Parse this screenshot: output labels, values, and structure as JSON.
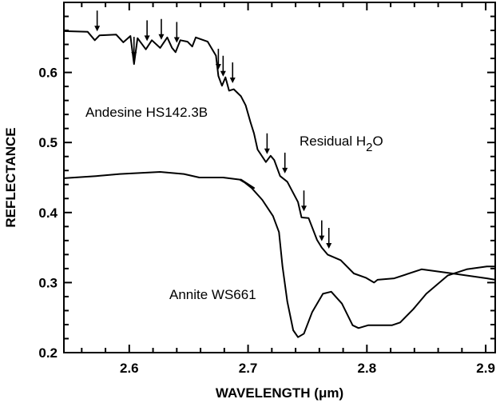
{
  "chart_data": {
    "type": "line",
    "title": "",
    "xlabel": "WAVELENGTH (μm)",
    "ylabel": "REFLECTANCE",
    "xlim": [
      2.545,
      2.908
    ],
    "ylim": [
      0.2,
      0.7
    ],
    "xticks": [
      2.6,
      2.7,
      2.8,
      2.9
    ],
    "xtick_labels": [
      "2.6",
      "2.7",
      "2.8",
      "2.9"
    ],
    "yticks": [
      0.2,
      0.3,
      0.4,
      0.5,
      0.6
    ],
    "ytick_labels": [
      "0.2",
      "0.3",
      "0.4",
      "0.5",
      "0.6"
    ],
    "minor_tick_step": 0.02,
    "grid": false,
    "series": [
      {
        "name": "Andesine HS142.3B",
        "x": [
          2.545,
          2.565,
          2.571,
          2.575,
          2.589,
          2.595,
          2.601,
          2.604,
          2.607,
          2.614,
          2.619,
          2.626,
          2.632,
          2.636,
          2.639,
          2.643,
          2.649,
          2.653,
          2.656,
          2.666,
          2.673,
          2.675,
          2.678,
          2.681,
          2.684,
          2.688,
          2.694,
          2.698,
          2.702,
          2.705,
          2.708,
          2.715,
          2.719,
          2.722,
          2.727,
          2.733,
          2.742,
          2.745,
          2.751,
          2.758,
          2.762,
          2.767,
          2.778,
          2.789,
          2.799,
          2.806,
          2.809,
          2.823,
          2.846,
          2.872,
          2.901,
          2.908
        ],
        "y": [
          0.659,
          0.658,
          0.646,
          0.653,
          0.654,
          0.643,
          0.652,
          0.612,
          0.649,
          0.633,
          0.646,
          0.635,
          0.65,
          0.635,
          0.629,
          0.646,
          0.644,
          0.637,
          0.65,
          0.644,
          0.624,
          0.595,
          0.581,
          0.593,
          0.574,
          0.576,
          0.566,
          0.553,
          0.529,
          0.513,
          0.49,
          0.472,
          0.481,
          0.475,
          0.452,
          0.444,
          0.415,
          0.393,
          0.392,
          0.361,
          0.35,
          0.34,
          0.332,
          0.313,
          0.307,
          0.3,
          0.304,
          0.306,
          0.319,
          0.313,
          0.306,
          0.304
        ]
      },
      {
        "name": "Annite WS661",
        "x": [
          2.545,
          2.572,
          2.592,
          2.626,
          2.646,
          2.659,
          2.679,
          2.693,
          2.705,
          2.694,
          2.703,
          2.712,
          2.721,
          2.726,
          2.729,
          2.733,
          2.738,
          2.742,
          2.747,
          2.754,
          2.763,
          2.77,
          2.779,
          2.788,
          2.793,
          2.801,
          2.821,
          2.828,
          2.839,
          2.85,
          2.868,
          2.884,
          2.901,
          2.908
        ],
        "y": [
          0.449,
          0.452,
          0.455,
          0.458,
          0.455,
          0.45,
          0.45,
          0.447,
          0.435,
          0.447,
          0.435,
          0.418,
          0.395,
          0.372,
          0.323,
          0.273,
          0.232,
          0.222,
          0.227,
          0.258,
          0.284,
          0.287,
          0.27,
          0.239,
          0.235,
          0.239,
          0.239,
          0.243,
          0.262,
          0.284,
          0.31,
          0.319,
          0.323,
          0.323
        ]
      }
    ],
    "arrows_x": [
      2.573,
      2.604,
      2.615,
      2.627,
      2.64,
      2.675,
      2.679,
      2.687,
      2.716,
      2.731,
      2.747,
      2.762,
      2.768
    ],
    "annotations": {
      "andesine": "Andesine HS142.3B",
      "residual_prefix": "Residual H",
      "residual_sub": "2",
      "residual_suffix": "O",
      "annite": "Annite WS661"
    }
  }
}
